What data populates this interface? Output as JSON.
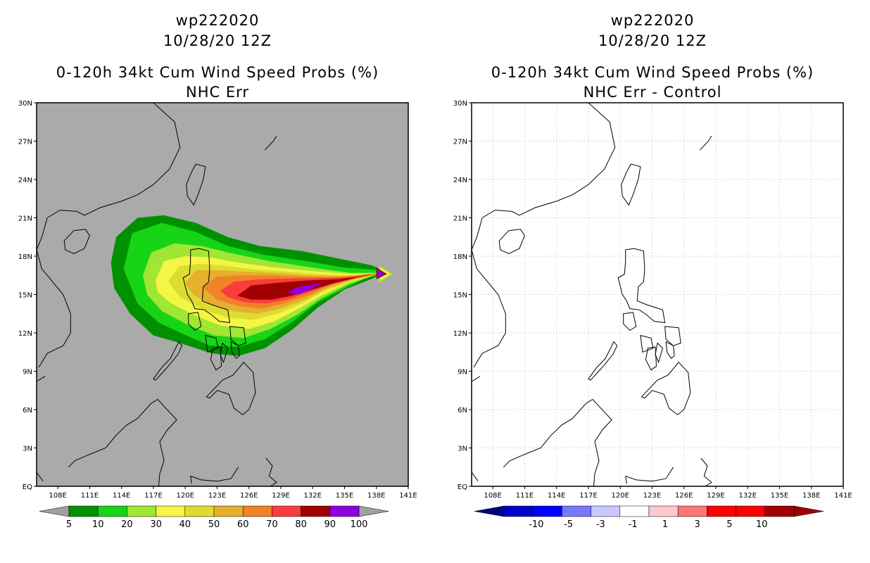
{
  "chart_data": [
    {
      "type": "heatmap",
      "title": [
        "wp222020",
        "10/28/20 12Z",
        "0-120h 34kt Cum Wind Speed Probs (%)",
        "NHC Err"
      ],
      "x_ticks": [
        "108E",
        "111E",
        "114E",
        "117E",
        "120E",
        "123E",
        "126E",
        "129E",
        "132E",
        "135E",
        "138E",
        "141E"
      ],
      "y_ticks": [
        "30N",
        "27N",
        "24N",
        "21N",
        "18N",
        "15N",
        "12N",
        "9N",
        "6N",
        "3N",
        "EQ"
      ],
      "xlim": [
        106,
        141
      ],
      "ylim": [
        0,
        30
      ],
      "grid": false,
      "colorbar": {
        "labels": [
          "5",
          "10",
          "20",
          "30",
          "40",
          "50",
          "60",
          "70",
          "80",
          "90",
          "100"
        ],
        "colors": [
          "#009100",
          "#17d417",
          "#a0e632",
          "#f5f546",
          "#dcdc32",
          "#e6af2d",
          "#f08228",
          "#fa3c3c",
          "#a00000",
          "#8c00dc"
        ]
      }
    },
    {
      "type": "heatmap",
      "title": [
        "wp222020",
        "10/28/20 12Z",
        "0-120h 34kt Cum Wind Speed Probs (%)",
        "NHC Err - Control"
      ],
      "x_ticks": [
        "108E",
        "111E",
        "114E",
        "117E",
        "120E",
        "123E",
        "126E",
        "129E",
        "132E",
        "135E",
        "138E",
        "141E"
      ],
      "y_ticks": [
        "30N",
        "27N",
        "24N",
        "21N",
        "18N",
        "15N",
        "12N",
        "9N",
        "6N",
        "3N",
        "EQ"
      ],
      "xlim": [
        106,
        141
      ],
      "ylim": [
        0,
        30
      ],
      "grid": true,
      "colorbar": {
        "labels": [
          "-10",
          "-5",
          "-3",
          "-1",
          "1",
          "3",
          "5",
          "10"
        ],
        "colors": [
          "#0000c8",
          "#0000ff",
          "#7878ff",
          "#c8c8ff",
          "#ffffff",
          "#ffc8c8",
          "#ff7878",
          "#ff0000",
          "#ff0000",
          "#a00000"
        ]
      }
    }
  ]
}
